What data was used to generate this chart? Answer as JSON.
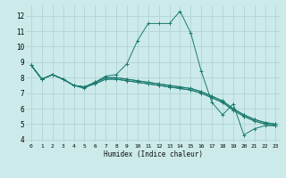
{
  "xlabel": "Humidex (Indice chaleur)",
  "bg_color": "#cceaea",
  "grid_color": "#add0d0",
  "line_color": "#1a7a6e",
  "xlim": [
    -0.5,
    23.5
  ],
  "ylim": [
    3.8,
    12.7
  ],
  "yticks": [
    4,
    5,
    6,
    7,
    8,
    9,
    10,
    11,
    12
  ],
  "xticks": [
    0,
    1,
    2,
    3,
    4,
    5,
    6,
    7,
    8,
    9,
    10,
    11,
    12,
    13,
    14,
    15,
    16,
    17,
    18,
    19,
    20,
    21,
    22,
    23
  ],
  "series": [
    [
      8.8,
      7.9,
      8.2,
      7.9,
      7.5,
      7.3,
      7.7,
      8.1,
      8.2,
      8.9,
      10.4,
      11.5,
      11.5,
      11.5,
      12.3,
      10.9,
      8.4,
      6.4,
      5.6,
      6.3,
      4.3,
      4.7,
      4.9,
      4.9
    ],
    [
      8.8,
      7.9,
      8.2,
      7.9,
      7.5,
      7.4,
      7.6,
      7.9,
      7.9,
      7.8,
      7.7,
      7.6,
      7.5,
      7.4,
      7.3,
      7.2,
      7.0,
      6.7,
      6.4,
      5.9,
      5.5,
      5.2,
      5.0,
      4.9
    ],
    [
      8.8,
      7.9,
      8.2,
      7.9,
      7.5,
      7.4,
      7.6,
      7.9,
      7.9,
      7.8,
      7.7,
      7.6,
      7.5,
      7.4,
      7.3,
      7.2,
      7.0,
      6.7,
      6.4,
      5.9,
      5.5,
      5.2,
      5.0,
      4.9
    ],
    [
      8.8,
      7.9,
      8.2,
      7.9,
      7.5,
      7.4,
      7.7,
      8.0,
      8.0,
      7.9,
      7.8,
      7.7,
      7.6,
      7.5,
      7.4,
      7.3,
      7.1,
      6.8,
      6.5,
      6.0,
      5.6,
      5.3,
      5.1,
      5.0
    ],
    [
      8.8,
      7.9,
      8.2,
      7.9,
      7.5,
      7.4,
      7.7,
      8.0,
      8.0,
      7.9,
      7.8,
      7.7,
      7.6,
      7.5,
      7.4,
      7.3,
      7.1,
      6.8,
      6.5,
      6.0,
      5.6,
      5.3,
      5.1,
      5.0
    ]
  ]
}
